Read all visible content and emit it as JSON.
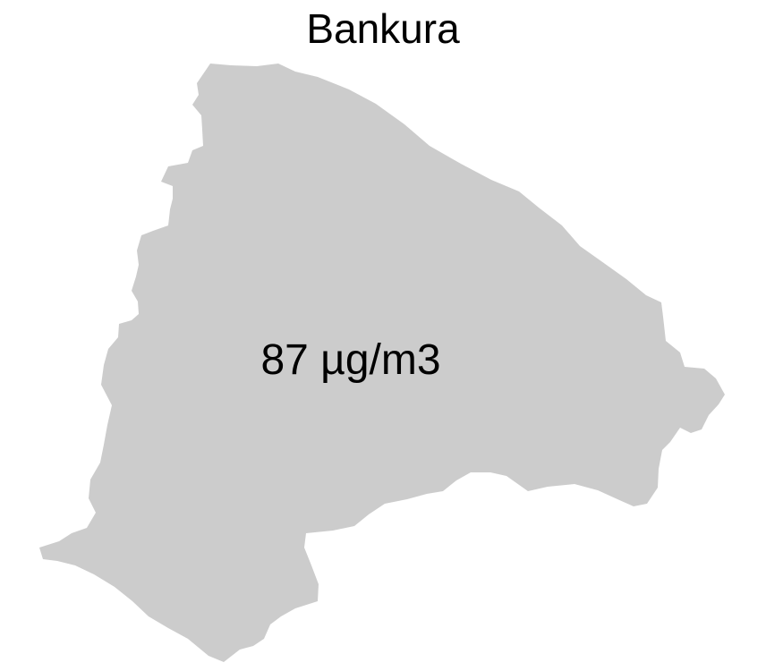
{
  "map": {
    "title": "Bankura",
    "region": {
      "label": "87 µg/m3",
      "fill_color": "#cccccc"
    },
    "background_color": "#ffffff"
  }
}
